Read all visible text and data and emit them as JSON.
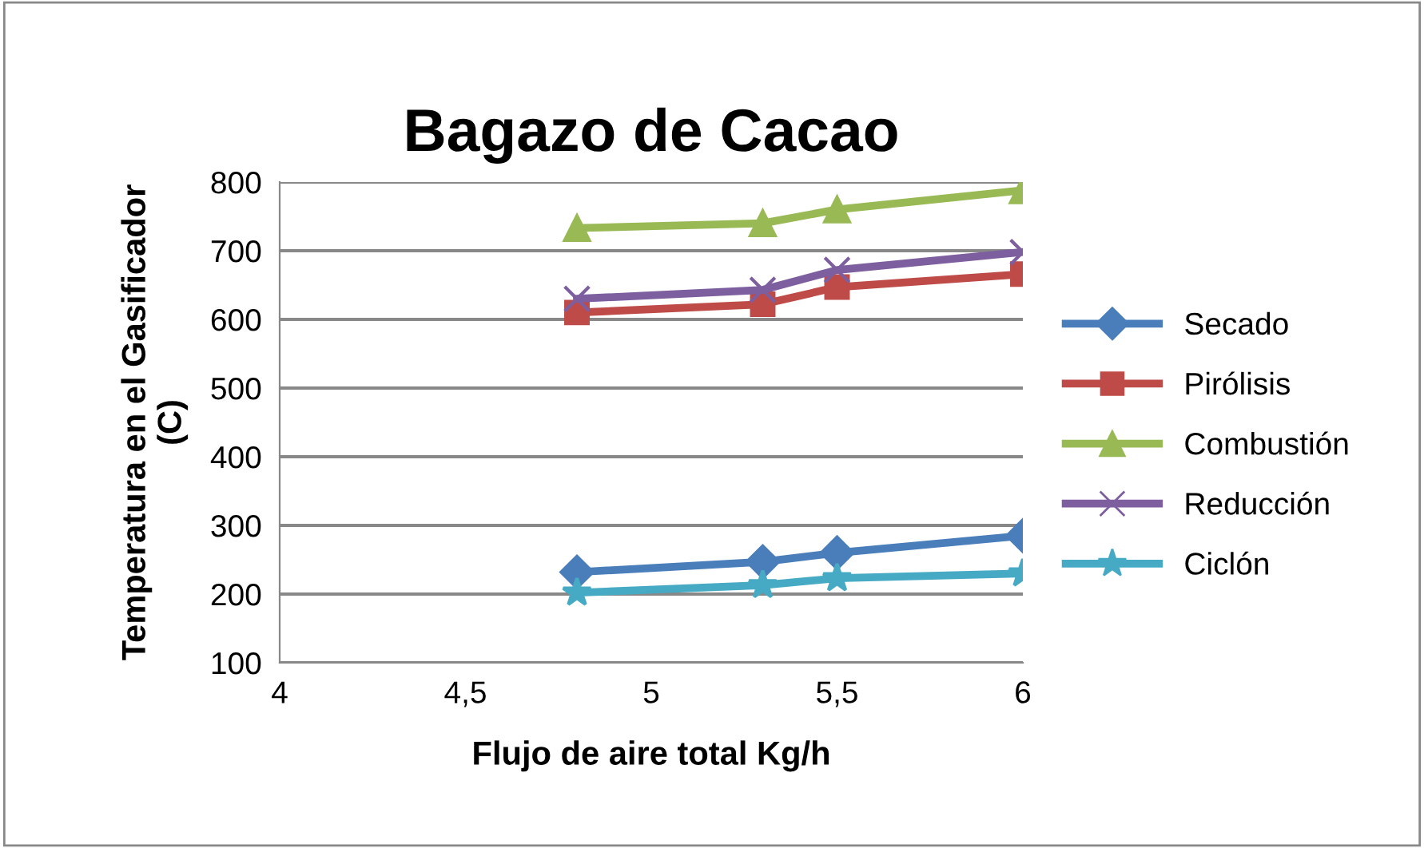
{
  "chart_data": {
    "type": "line",
    "title": "Bagazo de Cacao",
    "xlabel": "Flujo de aire total Kg/h",
    "ylabel": "Temperatura en el Gasificador\n(C)",
    "x": [
      4.8,
      5.3,
      5.5,
      6
    ],
    "series": [
      {
        "name": "Secado",
        "color": "#4a7ebb",
        "marker": "diamond",
        "values": [
          232,
          247,
          260,
          285
        ]
      },
      {
        "name": "Pirólisis",
        "color": "#be4b48",
        "marker": "square",
        "values": [
          610,
          622,
          647,
          666
        ]
      },
      {
        "name": "Combustión",
        "color": "#98b954",
        "marker": "triangle",
        "values": [
          733,
          740,
          760,
          788
        ]
      },
      {
        "name": "Reducción",
        "color": "#7d5fa0",
        "marker": "cross",
        "values": [
          630,
          643,
          672,
          698
        ]
      },
      {
        "name": "Ciclón",
        "color": "#46aac5",
        "marker": "star",
        "values": [
          202,
          213,
          223,
          230
        ]
      }
    ],
    "xlim": [
      4,
      6
    ],
    "xticks": [
      4,
      {
        "value": 4.5,
        "label": "4,5"
      },
      5,
      {
        "value": 5.5,
        "label": "5,5"
      },
      6
    ],
    "ylim": [
      100,
      800
    ],
    "yticks": [
      100,
      200,
      300,
      400,
      500,
      600,
      700,
      800
    ],
    "grid": "y",
    "legend": "right",
    "line_style": "solid"
  }
}
